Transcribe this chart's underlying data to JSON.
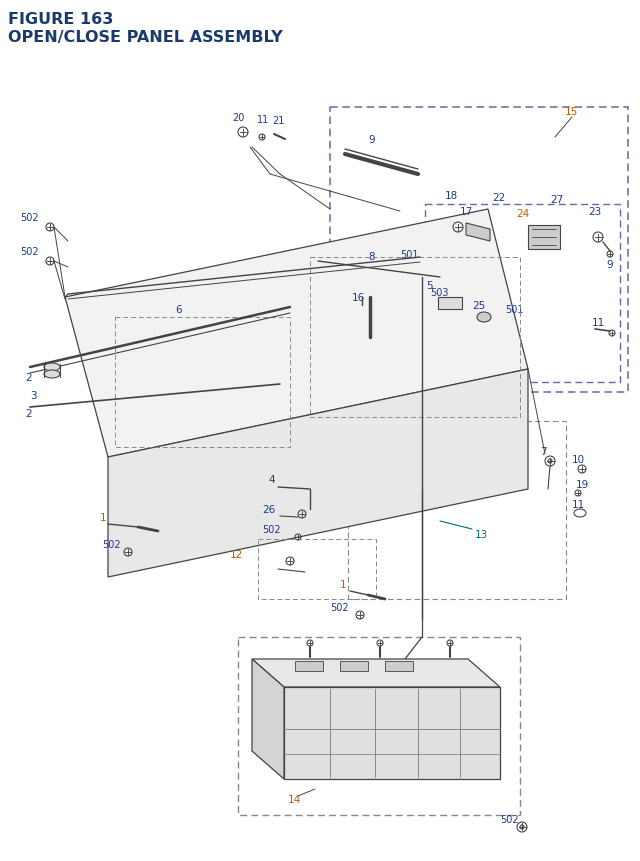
{
  "title_line1": "FIGURE 163",
  "title_line2": "OPEN/CLOSE PANEL ASSEMBLY",
  "title_color": "#1a3a6b",
  "title_fontsize": 11.5,
  "bg_color": "#ffffff",
  "blue": "#1a3a8c",
  "orange": "#cc5500",
  "teal": "#007070",
  "gray": "#444444",
  "lgray": "#888888",
  "dashed_color": "#6666aa"
}
